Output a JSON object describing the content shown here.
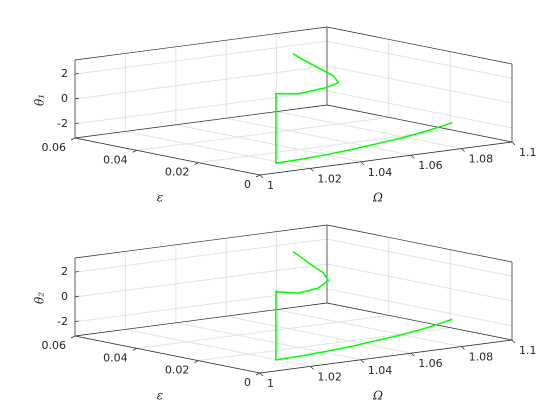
{
  "chart_data": [
    {
      "type": "line3d",
      "xlabel": "Ω",
      "ylabel": "ε",
      "zlabel": "θ₁",
      "xlim": [
        1,
        1.1
      ],
      "ylim": [
        0,
        0.06
      ],
      "zlim": [
        -3.14,
        3.14
      ],
      "xticks": [
        1,
        1.02,
        1.04,
        1.06,
        1.08,
        1.1
      ],
      "yticks": [
        0,
        0.02,
        0.04,
        0.06
      ],
      "zticks": [
        -2,
        0,
        2
      ],
      "grid": true,
      "series": [
        {
          "color": "#00ff00",
          "x": [
            1.08,
            1.07,
            1.06,
            1.05,
            1.04,
            1.03,
            1.02,
            1.01,
            1.01,
            1.064,
            1.075,
            1.08,
            1.078,
            1.072,
            1.066,
            1.062
          ],
          "y": [
            0.003,
            0.003,
            0.003,
            0.003,
            0.003,
            0.003,
            0.003,
            0.003,
            0.003,
            0.04,
            0.04,
            0.04,
            0.04,
            0.04,
            0.04,
            0.04
          ],
          "z": [
            -1.2,
            -1.6,
            -1.9,
            -2.1,
            -2.3,
            -2.45,
            -2.55,
            -2.6,
            3.0,
            -0.3,
            -0.1,
            0.2,
            0.8,
            1.6,
            2.4,
            3.0
          ]
        }
      ]
    },
    {
      "type": "line3d",
      "xlabel": "Ω",
      "ylabel": "ε",
      "zlabel": "θ₂",
      "xlim": [
        1,
        1.1
      ],
      "ylim": [
        0,
        0.06
      ],
      "zlim": [
        -3.14,
        3.14
      ],
      "xticks": [
        1,
        1.02,
        1.04,
        1.06,
        1.08,
        1.1
      ],
      "yticks": [
        0,
        0.02,
        0.04,
        0.06
      ],
      "zticks": [
        -2,
        0,
        2
      ],
      "grid": true,
      "series": [
        {
          "color": "#00ff00",
          "x": [
            1.08,
            1.07,
            1.06,
            1.05,
            1.04,
            1.03,
            1.02,
            1.01,
            1.01,
            1.064,
            1.072,
            1.076,
            1.074,
            1.069,
            1.065,
            1.062
          ],
          "y": [
            0.003,
            0.003,
            0.003,
            0.003,
            0.003,
            0.003,
            0.003,
            0.003,
            0.003,
            0.04,
            0.04,
            0.04,
            0.04,
            0.04,
            0.04,
            0.04
          ],
          "z": [
            -1.1,
            -1.5,
            -1.8,
            -2.0,
            -2.2,
            -2.35,
            -2.45,
            -2.5,
            3.0,
            -0.4,
            -0.2,
            0.3,
            1.0,
            1.8,
            2.5,
            3.0
          ]
        }
      ]
    }
  ]
}
